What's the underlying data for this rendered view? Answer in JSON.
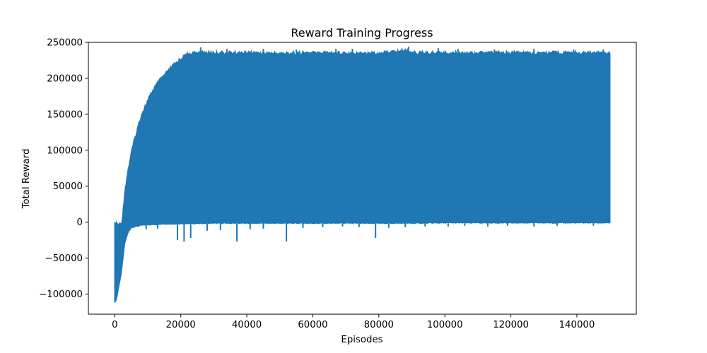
{
  "chart_data": {
    "type": "line",
    "title": "Reward Training Progress",
    "xlabel": "Episodes",
    "ylabel": "Total Reward",
    "xlim": [
      -8000,
      158000
    ],
    "ylim": [
      -128000,
      250000
    ],
    "xticks": [
      0,
      20000,
      40000,
      60000,
      80000,
      100000,
      120000,
      140000
    ],
    "xtick_labels": [
      "0",
      "20000",
      "40000",
      "60000",
      "80000",
      "100000",
      "120000",
      "140000"
    ],
    "yticks": [
      -100000,
      -50000,
      0,
      50000,
      100000,
      150000,
      200000,
      250000
    ],
    "ytick_labels": [
      "−100000",
      "−50000",
      "0",
      "50000",
      "100000",
      "150000",
      "200000",
      "250000"
    ],
    "grid": false,
    "series": [
      {
        "color": "#1f77b4",
        "x": [
          0,
          500,
          1000,
          2000,
          2500,
          3000,
          4000,
          5000,
          6000,
          7000,
          8000,
          10000,
          12000,
          14000,
          16000,
          18000,
          20000,
          22000,
          25000,
          30000,
          40000,
          50000,
          60000,
          70000,
          80000,
          89000,
          90000,
          100000,
          110000,
          120000,
          130000,
          140000,
          150000
        ],
        "upper": [
          0,
          0,
          0,
          0,
          18000,
          45000,
          75000,
          100000,
          118000,
          135000,
          152000,
          172000,
          190000,
          202000,
          212000,
          222000,
          230000,
          236000,
          238000,
          238000,
          238000,
          237000,
          238000,
          238000,
          237000,
          242000,
          238000,
          238000,
          238000,
          238000,
          238000,
          238000,
          238000
        ],
        "lower": [
          -112000,
          -108000,
          -95000,
          -70000,
          -50000,
          -30000,
          -15000,
          -8000,
          -7000,
          -6000,
          -5000,
          -4000,
          -4000,
          -3000,
          -3000,
          -3000,
          -3000,
          -2500,
          -2500,
          -2000,
          -2000,
          -2000,
          -2000,
          -2000,
          -2000,
          -2000,
          -2000,
          -1500,
          -1500,
          -1500,
          -1500,
          -1500,
          -1500
        ],
        "dips": [
          [
            4500,
            -8000
          ],
          [
            9500,
            -10000
          ],
          [
            13000,
            -9000
          ],
          [
            19000,
            -25000
          ],
          [
            21000,
            -27000
          ],
          [
            23000,
            -22000
          ],
          [
            28000,
            -12000
          ],
          [
            32000,
            -11000
          ],
          [
            37000,
            -27000
          ],
          [
            41000,
            -10000
          ],
          [
            45000,
            -9000
          ],
          [
            52000,
            -27000
          ],
          [
            57000,
            -8000
          ],
          [
            63000,
            -7000
          ],
          [
            69000,
            -6000
          ],
          [
            74000,
            -7000
          ],
          [
            79000,
            -22000
          ],
          [
            83000,
            -8000
          ],
          [
            88000,
            -7000
          ],
          [
            94000,
            -6000
          ],
          [
            101000,
            -6000
          ],
          [
            106000,
            -5000
          ],
          [
            113000,
            -6000
          ],
          [
            119000,
            -5000
          ],
          [
            127000,
            -6000
          ],
          [
            134000,
            -5000
          ],
          [
            145000,
            -5000
          ]
        ],
        "spikes": [
          [
            26000,
            243000
          ],
          [
            34000,
            241000
          ],
          [
            45000,
            241000
          ],
          [
            55000,
            240000
          ],
          [
            67000,
            241000
          ],
          [
            72000,
            241000
          ],
          [
            89000,
            244000
          ],
          [
            98000,
            242000
          ],
          [
            104000,
            241000
          ],
          [
            115000,
            240000
          ],
          [
            127000,
            241000
          ],
          [
            139000,
            240000
          ],
          [
            148000,
            240000
          ]
        ]
      }
    ]
  }
}
